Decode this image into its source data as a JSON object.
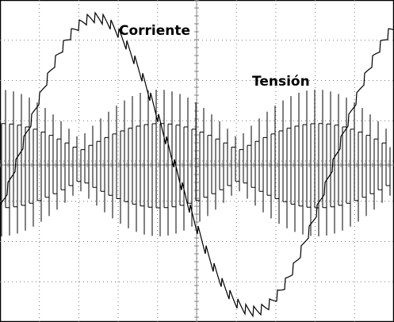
{
  "labels": {
    "current": "Corriente",
    "voltage": "Tensión"
  }
}
